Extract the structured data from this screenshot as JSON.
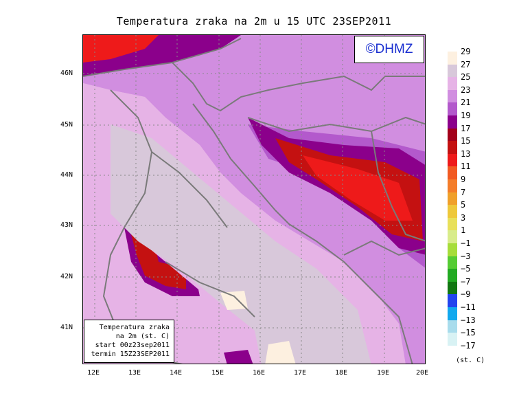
{
  "title": "Temperatura zraka na 2m u 15 UTC 23SEP2011",
  "logo": "©DHMZ",
  "info": {
    "line1": "Temperatura zraka",
    "line2": "na 2m (st. C)",
    "line3": "start 00z23sep2011",
    "line4": "termin 15Z23SEP2011"
  },
  "axes": {
    "lat_labels": [
      "46N",
      "45N",
      "44N",
      "43N",
      "42N",
      "41N"
    ],
    "lon_labels": [
      "12E",
      "13E",
      "14E",
      "15E",
      "16E",
      "17E",
      "18E",
      "19E",
      "20E"
    ]
  },
  "legend": {
    "unit": "(st. C)",
    "labels": [
      "29",
      "27",
      "25",
      "23",
      "21",
      "19",
      "17",
      "15",
      "13",
      "11",
      "9",
      "7",
      "5",
      "3",
      "1",
      "−1",
      "−3",
      "−5",
      "−7",
      "−9",
      "−11",
      "−13",
      "−15",
      "−17"
    ],
    "colors": [
      "#fdf0e0",
      "#d8c8da",
      "#e6b3e6",
      "#d18ee0",
      "#b359cc",
      "#8b008b",
      "#a3001a",
      "#c41111",
      "#ee1a1a",
      "#f15a22",
      "#f47d2a",
      "#f0a02a",
      "#eec83a",
      "#e8e05a",
      "#d8ec8a",
      "#a6dd3a",
      "#55cc33",
      "#22aa22",
      "#117711",
      "#2244ee",
      "#11a8ee",
      "#a8dcec",
      "#d8f2f4"
    ]
  },
  "map_colors": {
    "sea": "#e6b3e6",
    "land": "#d18ee0",
    "warm_land": "#b359cc",
    "cool": "#d8c8da",
    "coolest": "#fdf0e0",
    "hot": "#8b008b",
    "hotter": "#c41111",
    "hottest": "#ee1a1a",
    "border": "#7a7a7a"
  }
}
